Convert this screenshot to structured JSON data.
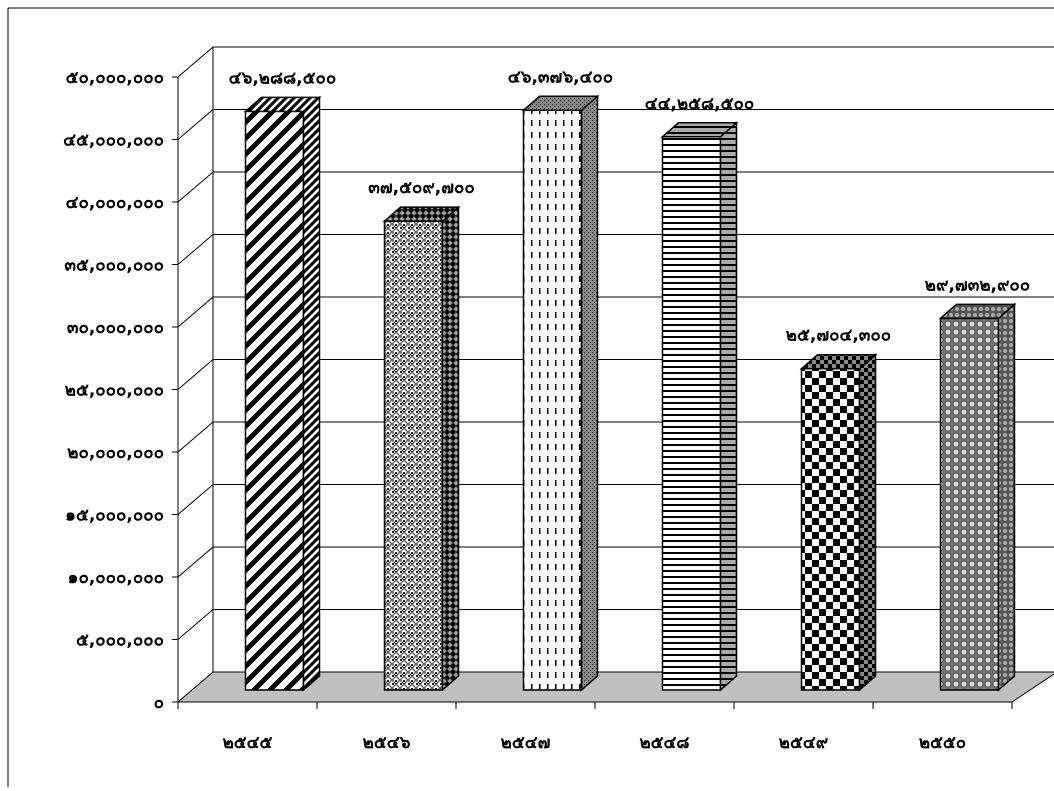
{
  "chart_data": {
    "type": "bar",
    "categories": [
      "๒๕๔๕",
      "๒๕๔๖",
      "๒๕๔๗",
      "๒๕๔๘",
      "๒๕๔๙",
      "๒๕๕๐"
    ],
    "values": [
      46288500,
      37509700,
      46376400,
      44258500,
      25704300,
      29732900
    ],
    "data_labels": [
      "๔๖,๒๘๘,๕๐๐",
      "๓๗,๕๐๙,๗๐๐",
      "๔๖,๓๗๖,๔๐๐",
      "๔๔,๒๕๘,๕๐๐",
      "๒๕,๗๐๔,๓๐๐",
      "๒๙,๗๓๒,๙๐๐"
    ],
    "y_ticks": [
      {
        "value": 0,
        "label": "๐"
      },
      {
        "value": 5000000,
        "label": "๕,๐๐๐,๐๐๐"
      },
      {
        "value": 10000000,
        "label": "๑๐,๐๐๐,๐๐๐"
      },
      {
        "value": 15000000,
        "label": "๑๕,๐๐๐,๐๐๐"
      },
      {
        "value": 20000000,
        "label": "๒๐,๐๐๐,๐๐๐"
      },
      {
        "value": 25000000,
        "label": "๒๕,๐๐๐,๐๐๐"
      },
      {
        "value": 30000000,
        "label": "๓๐,๐๐๐,๐๐๐"
      },
      {
        "value": 35000000,
        "label": "๓๕,๐๐๐,๐๐๐"
      },
      {
        "value": 40000000,
        "label": "๔๐,๐๐๐,๐๐๐"
      },
      {
        "value": 45000000,
        "label": "๔๕,๐๐๐,๐๐๐"
      },
      {
        "value": 50000000,
        "label": "๕๐,๐๐๐,๐๐๐"
      }
    ],
    "ylim": [
      0,
      50000000
    ],
    "title": "",
    "xlabel": "",
    "ylabel": "",
    "grid": true,
    "legend": "none",
    "style": "3d",
    "bar_patterns": [
      "diagonal-stripes",
      "weave",
      "dashed-vertical",
      "horizontal-lines",
      "checkerboard",
      "dots"
    ],
    "colors": {
      "floor": "#c0c0c0",
      "bar_outline": "#000000",
      "grid": "#000000"
    }
  }
}
